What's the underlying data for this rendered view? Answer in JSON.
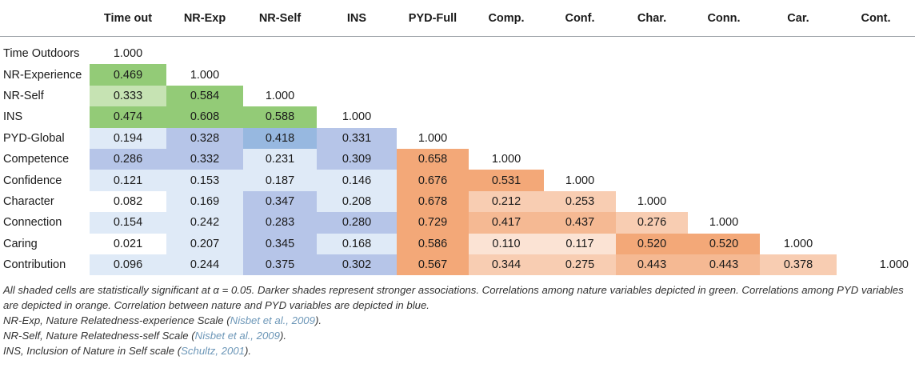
{
  "table": {
    "corner_label": "",
    "columns": [
      "Time out",
      "NR-Exp",
      "NR-Self",
      "INS",
      "PYD-Full",
      "Comp.",
      "Conf.",
      "Char.",
      "Conn.",
      "Car.",
      "Cont."
    ],
    "rows": [
      {
        "label": "Time Outdoors",
        "values": [
          "1.000",
          "",
          "",
          "",
          "",
          "",
          "",
          "",
          "",
          "",
          ""
        ]
      },
      {
        "label": "NR-Experience",
        "values": [
          "0.469",
          "1.000",
          "",
          "",
          "",
          "",
          "",
          "",
          "",
          "",
          ""
        ]
      },
      {
        "label": "NR-Self",
        "values": [
          "0.333",
          "0.584",
          "1.000",
          "",
          "",
          "",
          "",
          "",
          "",
          "",
          ""
        ]
      },
      {
        "label": "INS",
        "values": [
          "0.474",
          "0.608",
          "0.588",
          "1.000",
          "",
          "",
          "",
          "",
          "",
          "",
          ""
        ]
      },
      {
        "label": "PYD-Global",
        "values": [
          "0.194",
          "0.328",
          "0.418",
          "0.331",
          "1.000",
          "",
          "",
          "",
          "",
          "",
          ""
        ]
      },
      {
        "label": "Competence",
        "values": [
          "0.286",
          "0.332",
          "0.231",
          "0.309",
          "0.658",
          "1.000",
          "",
          "",
          "",
          "",
          ""
        ]
      },
      {
        "label": "Confidence",
        "values": [
          "0.121",
          "0.153",
          "0.187",
          "0.146",
          "0.676",
          "0.531",
          "1.000",
          "",
          "",
          "",
          ""
        ]
      },
      {
        "label": "Character",
        "values": [
          "0.082",
          "0.169",
          "0.347",
          "0.208",
          "0.678",
          "0.212",
          "0.253",
          "1.000",
          "",
          "",
          ""
        ]
      },
      {
        "label": "Connection",
        "values": [
          "0.154",
          "0.242",
          "0.283",
          "0.280",
          "0.729",
          "0.417",
          "0.437",
          "0.276",
          "1.000",
          "",
          ""
        ]
      },
      {
        "label": "Caring",
        "values": [
          "0.021",
          "0.207",
          "0.345",
          "0.168",
          "0.586",
          "0.110",
          "0.117",
          "0.520",
          "0.520",
          "1.000",
          ""
        ]
      },
      {
        "label": "Contribution",
        "values": [
          "0.096",
          "0.244",
          "0.375",
          "0.302",
          "0.567",
          "0.344",
          "0.275",
          "0.443",
          "0.443",
          "0.378",
          "1.000"
        ]
      }
    ],
    "shading": [
      [
        "",
        "",
        "",
        "",
        "",
        "",
        "",
        "",
        "",
        "",
        ""
      ],
      [
        "#93cb77",
        "",
        "",
        "",
        "",
        "",
        "",
        "",
        "",
        "",
        ""
      ],
      [
        "#c6e3b3",
        "#93cb77",
        "",
        "",
        "",
        "",
        "",
        "",
        "",
        "",
        ""
      ],
      [
        "#93cb77",
        "#93cb77",
        "#93cb77",
        "",
        "",
        "",
        "",
        "",
        "",
        "",
        ""
      ],
      [
        "#dfeaf7",
        "#b6c5e8",
        "#97b8e0",
        "#b6c5e8",
        "",
        "",
        "",
        "",
        "",
        "",
        ""
      ],
      [
        "#b6c5e8",
        "#b6c5e8",
        "#dfeaf7",
        "#b6c5e8",
        "#f3a878",
        "",
        "",
        "",
        "",
        "",
        ""
      ],
      [
        "#dfeaf7",
        "#dfeaf7",
        "#dfeaf7",
        "#dfeaf7",
        "#f3a878",
        "#f3a878",
        "",
        "",
        "",
        "",
        ""
      ],
      [
        "",
        "#dfeaf7",
        "#b6c5e8",
        "#dfeaf7",
        "#f3a878",
        "#f8cdb2",
        "#f8cdb2",
        "",
        "",
        "",
        ""
      ],
      [
        "#dfeaf7",
        "#dfeaf7",
        "#b6c5e8",
        "#b6c5e8",
        "#f3a878",
        "#f5b993",
        "#f5b993",
        "#f8cdb2",
        "",
        "",
        ""
      ],
      [
        "",
        "#dfeaf7",
        "#b6c5e8",
        "#dfeaf7",
        "#f3a878",
        "#fbe3d4",
        "#fbe3d4",
        "#f3a878",
        "#f3a878",
        "",
        ""
      ],
      [
        "#dfeaf7",
        "#dfeaf7",
        "#b6c5e8",
        "#b6c5e8",
        "#f3a878",
        "#f8cdb2",
        "#f8cdb2",
        "#f5b993",
        "#f5b993",
        "#f8cdb2",
        ""
      ]
    ]
  },
  "notes": {
    "main": "All shaded cells are statistically significant at α = 0.05. Darker shades represent stronger associations. Correlations among nature variables depicted in green. Correlations among PYD variables are depicted in orange. Correlation between nature and PYD variables are depicted in blue.",
    "nr_exp_text": "NR-Exp, Nature Relatedness-experience Scale (",
    "nr_exp_ref": "Nisbet et al., 2009",
    "nr_exp_close": ").",
    "nr_self_text": "NR-Self, Nature Relatedness-self Scale (",
    "nr_self_ref": "Nisbet et al., 2009",
    "nr_self_close": ").",
    "ins_text": "INS, Inclusion of Nature in Self scale (",
    "ins_ref": "Schultz, 2001",
    "ins_close": ")."
  }
}
